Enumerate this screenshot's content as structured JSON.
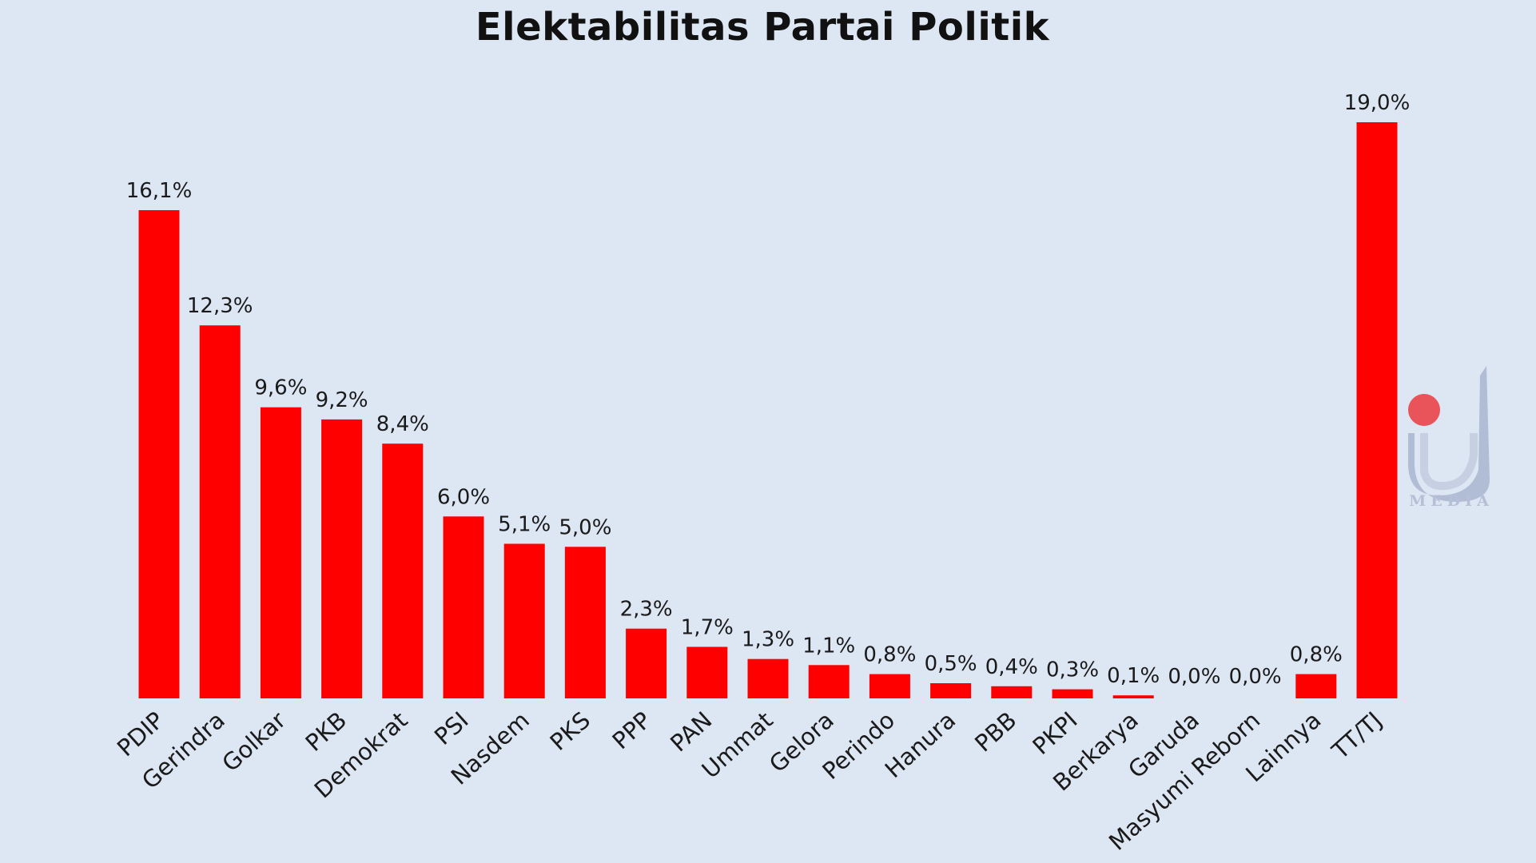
{
  "chart_data": {
    "type": "bar",
    "title": "Elektabilitas Partai Politik",
    "xlabel": "",
    "ylabel": "",
    "ylim": [
      0,
      19.0
    ],
    "grid": false,
    "legend": "none",
    "bar_color": "#ff0000",
    "background_color": "#dde6f3",
    "categories": [
      "PDIP",
      "Gerindra",
      "Golkar",
      "PKB",
      "Demokrat",
      "PSI",
      "Nasdem",
      "PKS",
      "PPP",
      "PAN",
      "Ummat",
      "Gelora",
      "Perindo",
      "Hanura",
      "PBB",
      "PKPI",
      "Berkarya",
      "Garuda",
      "Masyumi Reborn",
      "Lainnya",
      "TT/TJ"
    ],
    "values": [
      16.1,
      12.3,
      9.6,
      9.2,
      8.4,
      6.0,
      5.1,
      5.0,
      2.3,
      1.7,
      1.3,
      1.1,
      0.8,
      0.5,
      0.4,
      0.3,
      0.1,
      0.0,
      0.0,
      0.8,
      19.0
    ],
    "data_labels": [
      "16,1%",
      "12,3%",
      "9,6%",
      "9,2%",
      "8,4%",
      "6,0%",
      "5,1%",
      "5,0%",
      "2,3%",
      "1,7%",
      "1,3%",
      "1,1%",
      "0,8%",
      "0,5%",
      "0,4%",
      "0,3%",
      "0,1%",
      "0,0%",
      "0,0%",
      "0,8%",
      "19,0%"
    ]
  },
  "watermark": {
    "text": "MEDIA",
    "icon": "ij-media-logo-icon",
    "accent_color": "#e8545a",
    "logo_color": "#a9b4cf"
  }
}
